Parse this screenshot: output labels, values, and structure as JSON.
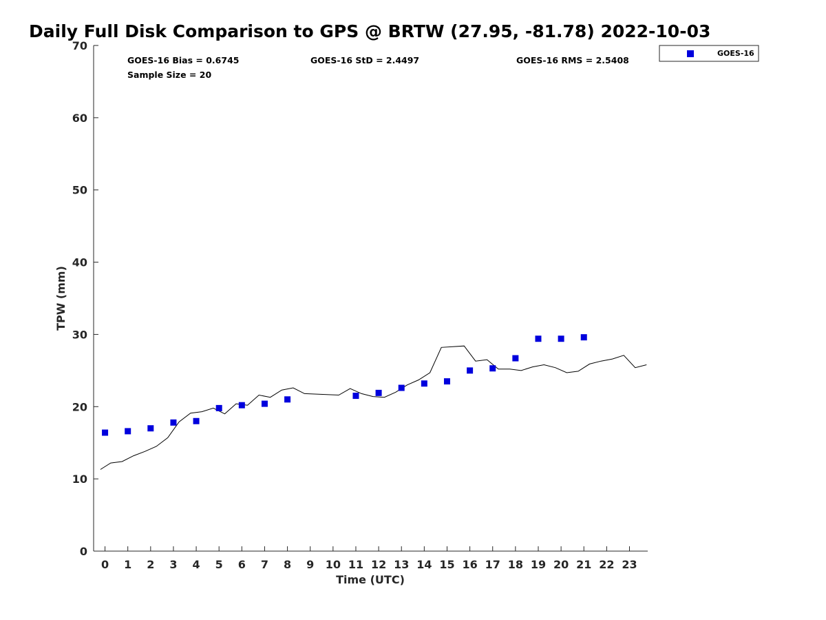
{
  "chart_data": {
    "type": "scatter",
    "title": "Daily Full Disk Comparison to GPS @ BRTW (27.95, -81.78) 2022-10-03",
    "xlabel": "Time (UTC)",
    "ylabel": "TPW (mm)",
    "xlim": [
      -0.5,
      23.8
    ],
    "ylim": [
      0,
      70
    ],
    "xticks": [
      0,
      1,
      2,
      3,
      4,
      5,
      6,
      7,
      8,
      9,
      10,
      11,
      12,
      13,
      14,
      15,
      16,
      17,
      18,
      19,
      20,
      21,
      22,
      23
    ],
    "yticks": [
      0,
      10,
      20,
      30,
      40,
      50,
      60,
      70
    ],
    "grid": false,
    "legend_position": "top-right, outside plot",
    "stats": {
      "bias": "GOES-16 Bias = 0.6745",
      "std": "GOES-16 StD = 2.4497",
      "rms": "GOES-16 RMS = 2.5408",
      "sample": "Sample Size = 20"
    },
    "series": [
      {
        "name": "GOES-16",
        "kind": "scatter",
        "marker": "square",
        "color": "#0000dd",
        "x": [
          0,
          1,
          2,
          3,
          4,
          5,
          6,
          7,
          8,
          11,
          12,
          13,
          14,
          15,
          16,
          17,
          18,
          19,
          20,
          21
        ],
        "y": [
          16.4,
          16.6,
          17.0,
          17.8,
          18.0,
          19.8,
          20.2,
          20.4,
          21.0,
          21.5,
          21.9,
          22.6,
          23.2,
          23.5,
          25.0,
          25.3,
          26.7,
          29.4,
          29.4,
          29.6
        ]
      },
      {
        "kind": "line",
        "color": "#000000",
        "x": [
          -0.2,
          0.25,
          0.75,
          1.25,
          1.75,
          2.25,
          2.75,
          3.25,
          3.75,
          4.25,
          4.75,
          5.25,
          5.75,
          6.25,
          6.75,
          7.25,
          7.75,
          8.25,
          8.75,
          10.25,
          10.75,
          11.25,
          11.75,
          12.25,
          12.75,
          13.25,
          13.75,
          14.25,
          14.75,
          15.75,
          16.25,
          16.75,
          17.25,
          17.75,
          18.25,
          18.75,
          19.25,
          19.75,
          20.25,
          20.75,
          21.25,
          21.75,
          22.25,
          22.75,
          23.25,
          23.75
        ],
        "y": [
          11.3,
          12.2,
          12.4,
          13.2,
          13.8,
          14.5,
          15.7,
          17.9,
          19.1,
          19.3,
          19.8,
          19.0,
          20.4,
          20.2,
          21.6,
          21.3,
          22.3,
          22.6,
          21.8,
          21.6,
          22.5,
          21.8,
          21.4,
          21.3,
          22.0,
          23.0,
          23.7,
          24.7,
          28.2,
          28.4,
          26.3,
          26.5,
          25.2,
          25.2,
          25.0,
          25.5,
          25.8,
          25.4,
          24.7,
          24.9,
          25.9,
          26.3,
          26.6,
          27.1,
          25.4,
          25.8
        ]
      }
    ]
  }
}
